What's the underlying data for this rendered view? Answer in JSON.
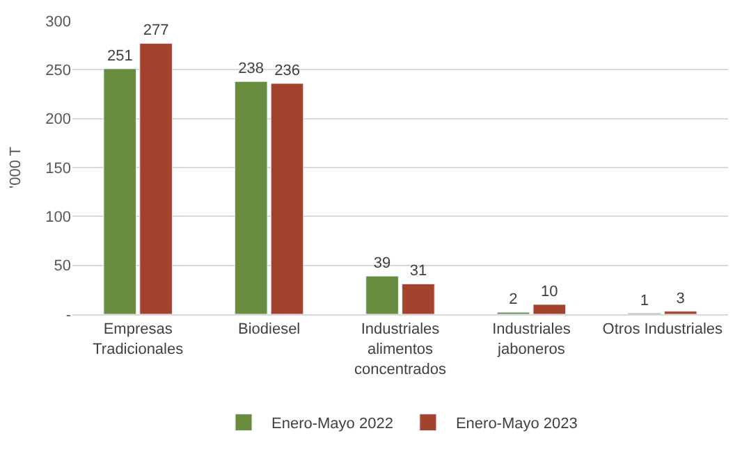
{
  "chart_data": {
    "type": "bar",
    "ylabel": "'000 T",
    "categories": [
      "Empresas\nTradicionales",
      "Biodiesel",
      "Industriales\nalimentos\nconcentrados",
      "Industriales\njaboneros",
      "Otros Industriales"
    ],
    "series": [
      {
        "name": "Enero-Mayo 2022",
        "color": "#6a8c3e",
        "values": [
          251,
          238,
          39,
          2,
          1
        ]
      },
      {
        "name": "Enero-Mayo 2023",
        "color": "#a3432d",
        "values": [
          277,
          236,
          31,
          10,
          3
        ]
      }
    ],
    "ylim": [
      0,
      300
    ],
    "yticks": [
      {
        "value": 0,
        "label": "-"
      },
      50,
      100,
      150,
      200,
      250,
      300
    ],
    "grid": "y",
    "legend": "bottom",
    "data_labels": true
  }
}
